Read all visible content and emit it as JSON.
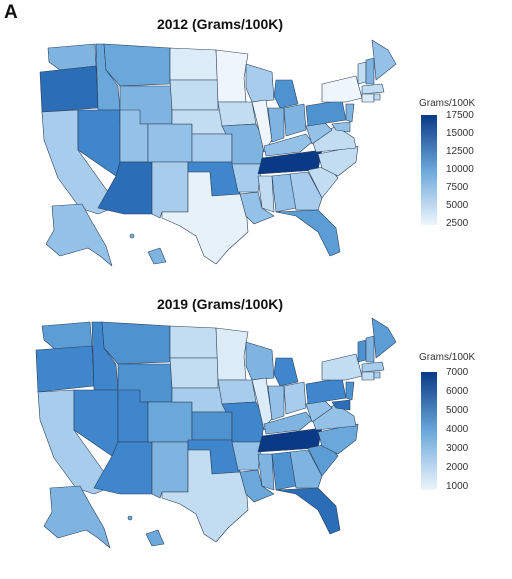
{
  "figure": {
    "panel_label": "A"
  },
  "maps": [
    {
      "title": "2012 (Grams/100K)",
      "legend": {
        "title": "Grams/100K",
        "ticks": [
          "17500",
          "15000",
          "12500",
          "10000",
          "7500",
          "5000",
          "2500"
        ],
        "colors": {
          "low": "#eef5fc",
          "high": "#0a3a86"
        }
      }
    },
    {
      "title": "2019 (Grams/100K)",
      "legend": {
        "title": "Grams/100K",
        "ticks": [
          "7000",
          "6000",
          "5000",
          "4000",
          "3000",
          "2000",
          "1000"
        ],
        "colors": {
          "low": "#eef5fc",
          "high": "#0a3a86"
        }
      }
    }
  ]
}
